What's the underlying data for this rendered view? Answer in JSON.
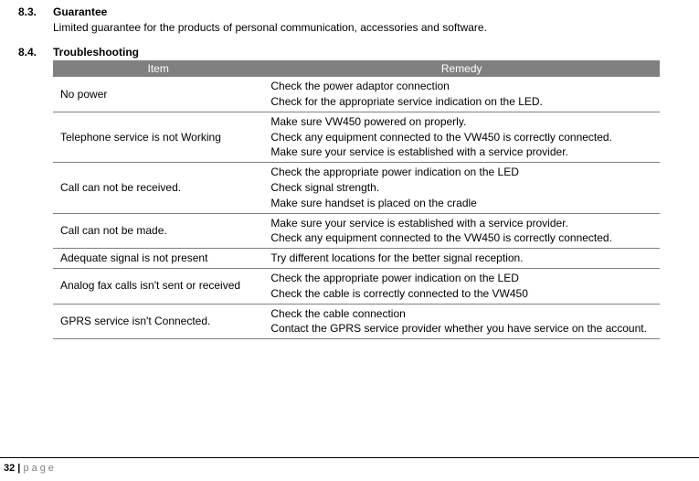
{
  "section1": {
    "num": "8.3.",
    "title": "Guarantee",
    "body": "Limited guarantee for the products of personal communication, accessories and software."
  },
  "section2": {
    "num": "8.4.",
    "title": "Troubleshooting"
  },
  "table": {
    "headers": {
      "item": "Item",
      "remedy": "Remedy"
    },
    "rows": [
      {
        "item": "No power",
        "remedy": "Check the power adaptor connection\nCheck for the appropriate service indication on the LED."
      },
      {
        "item": "Telephone service is not Working",
        "remedy": "Make sure VW450 powered on properly.\nCheck any equipment connected to the VW450 is correctly connected.\nMake sure your service is established with a service provider."
      },
      {
        "item": "Call can not be received.",
        "remedy": "Check the appropriate power indication on the LED\nCheck signal strength.\nMake sure handset is placed on the cradle"
      },
      {
        "item": "Call can not be made.",
        "remedy": "Make sure your service is established with a service provider.\nCheck any equipment connected to the VW450 is correctly connected."
      },
      {
        "item": "Adequate signal is not present",
        "remedy": "Try different locations for the better signal reception."
      },
      {
        "item": "Analog fax calls isn't sent or received",
        "remedy": "Check the appropriate power indication on the LED\nCheck the cable is correctly connected to the VW450"
      },
      {
        "item": "GPRS service isn't Connected.",
        "remedy": "Check the cable connection\nContact the GPRS service provider whether you have service on the account."
      }
    ]
  },
  "footer": {
    "pagenum": "32",
    "sep": " | ",
    "label": "page"
  }
}
